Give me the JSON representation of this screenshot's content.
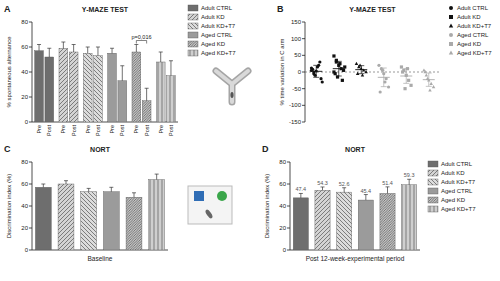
{
  "chart_data": [
    {
      "panel": "A",
      "type": "bar",
      "title": "Y-MAZE TEST",
      "y_label": "% spontaneous alternance",
      "categories": [
        "Pre",
        "Post"
      ],
      "series": [
        {
          "name": "Adult CTRL",
          "color": "#6e6e6e",
          "values": [
            57,
            52
          ],
          "errors": [
            5,
            7
          ]
        },
        {
          "name": "Adult KD",
          "color": "#d4d4d4",
          "values": [
            59,
            56
          ],
          "errors": [
            5,
            6
          ]
        },
        {
          "name": "Adult KD+T7",
          "color": "#dcdcdc",
          "values": [
            55,
            53
          ],
          "errors": [
            5,
            7
          ]
        },
        {
          "name": "Aged CTRL",
          "color": "#9b9b9b",
          "values": [
            55,
            33
          ],
          "errors": [
            4,
            12
          ]
        },
        {
          "name": "Aged KD",
          "color": "#c4c4c4",
          "values": [
            56,
            17
          ],
          "errors": [
            6,
            10
          ],
          "annotation": "p=0,016"
        },
        {
          "name": "Aged KD+T7",
          "color": "#cfcfcf",
          "values": [
            48,
            37
          ],
          "errors": [
            8,
            12
          ]
        }
      ],
      "ylim": [
        0,
        80
      ],
      "yticks": [
        0,
        20,
        40,
        60,
        80
      ],
      "legend": "right"
    },
    {
      "panel": "B",
      "type": "scatter",
      "title": "Y-MAZE TEST",
      "y_label": "% time variation in C arm",
      "series": [
        {
          "name": "Adult CTRL",
          "color": "#111111",
          "marker": "circle",
          "values": [
            12,
            -5,
            3,
            20,
            -20,
            8,
            -10,
            15,
            30,
            -30,
            5,
            0
          ],
          "mean": 2,
          "error": 18
        },
        {
          "name": "Adult KD",
          "color": "#111111",
          "marker": "square",
          "values": [
            48,
            30,
            20,
            10,
            5,
            -5,
            -15,
            25,
            -25,
            15,
            0,
            35
          ],
          "mean": 10,
          "error": 22
        },
        {
          "name": "Adult KD+T7",
          "color": "#111111",
          "marker": "triangle",
          "values": [
            25,
            15,
            10,
            5,
            0,
            -5,
            20,
            -10
          ],
          "mean": 7,
          "error": 12
        },
        {
          "name": "Aged CTRL",
          "color": "#aaaaaa",
          "marker": "circle",
          "values": [
            20,
            10,
            -5,
            -20,
            -45,
            -60,
            5,
            -30
          ],
          "mean": -16,
          "error": 28
        },
        {
          "name": "Aged KD",
          "color": "#aaaaaa",
          "marker": "square",
          "values": [
            15,
            5,
            -10,
            -25,
            -40,
            0,
            -50,
            10
          ],
          "mean": -12,
          "error": 22
        },
        {
          "name": "Aged KD+T7",
          "color": "#aaaaaa",
          "marker": "triangle",
          "values": [
            5,
            -10,
            -25,
            -35,
            -45,
            0,
            -20,
            -55
          ],
          "mean": -23,
          "error": 20
        }
      ],
      "reference_line": 0,
      "ylim": [
        -150,
        150
      ],
      "yticks": [
        -150,
        -100,
        -50,
        0,
        50,
        100,
        150
      ],
      "tick_labels": "y",
      "legend": "right"
    },
    {
      "panel": "C",
      "type": "bar",
      "title": "NORT",
      "y_label": "Discrimination index (%)",
      "categories": [
        "Baseline"
      ],
      "series": [
        {
          "color": "#6e6e6e",
          "values": [
            57
          ],
          "errors": [
            3
          ]
        },
        {
          "color": "#d4d4d4",
          "values": [
            60
          ],
          "errors": [
            3
          ]
        },
        {
          "color": "#dcdcdc",
          "values": [
            53
          ],
          "errors": [
            3
          ]
        },
        {
          "color": "#9b9b9b",
          "values": [
            53
          ],
          "errors": [
            4
          ]
        },
        {
          "color": "#c4c4c4",
          "values": [
            48
          ],
          "errors": [
            4
          ]
        },
        {
          "color": "#cfcfcf",
          "values": [
            64
          ],
          "errors": [
            5
          ]
        }
      ],
      "ylim": [
        0,
        80
      ],
      "yticks": [
        0,
        20,
        40,
        60,
        80
      ]
    },
    {
      "panel": "D",
      "type": "bar",
      "title": "NORT",
      "y_label": "Discrimination index (%)",
      "categories": [
        "Post 12-week-experimental period"
      ],
      "series": [
        {
          "name": "Adult CTRL",
          "color": "#6e6e6e",
          "values": [
            47.4
          ],
          "errors": [
            4
          ]
        },
        {
          "name": "Adult KD",
          "color": "#d4d4d4",
          "values": [
            54.3
          ],
          "errors": [
            3
          ]
        },
        {
          "name": "Adult KD+T7",
          "color": "#dcdcdc",
          "values": [
            52.6
          ],
          "errors": [
            4
          ]
        },
        {
          "name": "Aged CTRL",
          "color": "#9b9b9b",
          "values": [
            45.4
          ],
          "errors": [
            5
          ]
        },
        {
          "name": "Aged KD",
          "color": "#c4c4c4",
          "values": [
            51.4
          ],
          "errors": [
            6
          ]
        },
        {
          "name": "Aged KD+T7",
          "color": "#cfcfcf",
          "values": [
            59.3
          ],
          "errors": [
            5
          ]
        }
      ],
      "ylim": [
        0,
        80
      ],
      "yticks": [
        0,
        20,
        40,
        60,
        80
      ],
      "data_labels": true,
      "legend": "right"
    }
  ]
}
